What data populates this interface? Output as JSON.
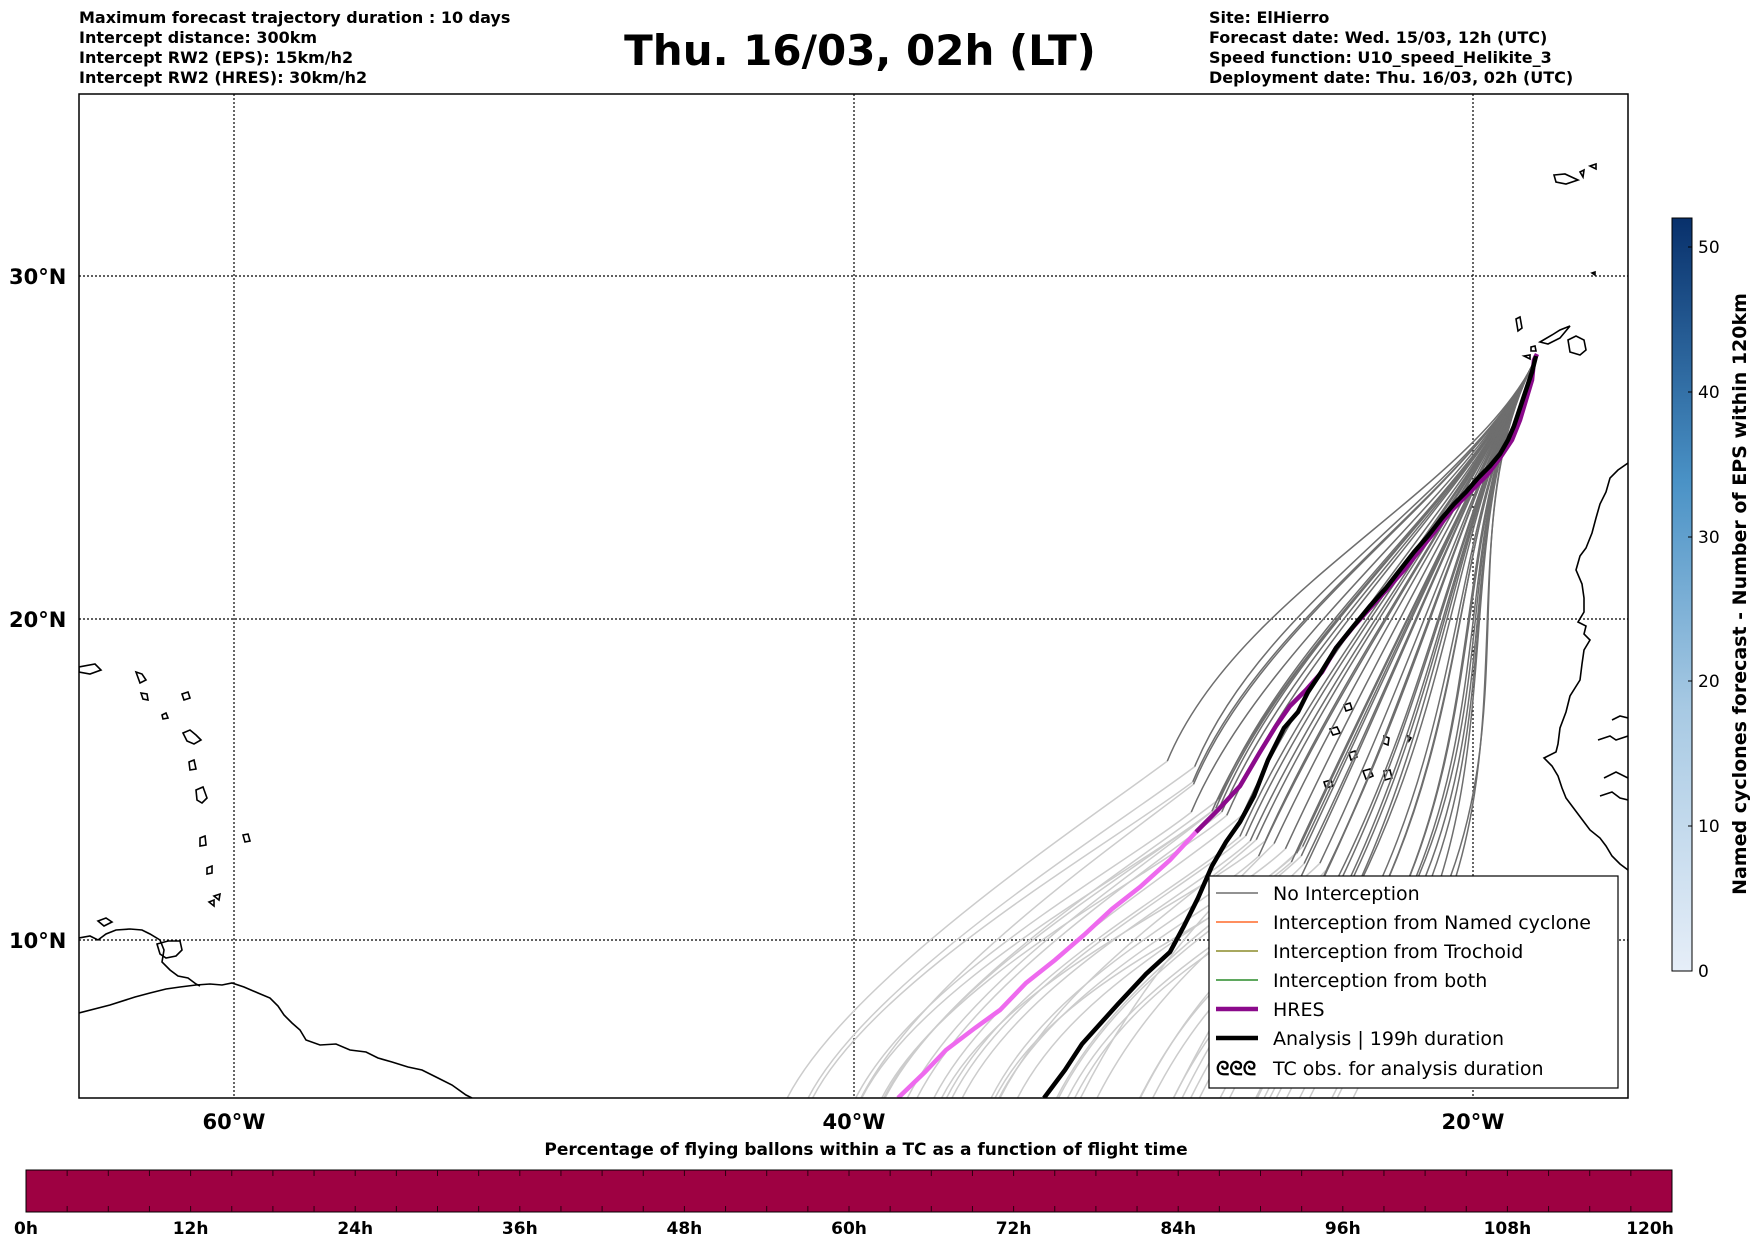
{
  "header": {
    "left_lines": [
      "Maximum forecast trajectory duration : 10 days",
      "Intercept distance: 300km",
      "Intercept RW2 (EPS):  15km/h2",
      "Intercept RW2 (HRES): 30km/h2"
    ],
    "title": "Thu. 16/03, 02h (LT)",
    "right_lines": [
      "Site: ElHierro",
      "Forecast date: Wed. 15/03, 12h (UTC)",
      "Speed function: U10_speed_Helikite_3",
      "Deployment date: Thu. 16/03, 02h (UTC)"
    ]
  },
  "map": {
    "lat_labels": [
      "30°N",
      "20°N",
      "10°N"
    ],
    "lon_labels": [
      "60°W",
      "40°W",
      "20°W"
    ],
    "gridline_style": "dotted",
    "site": "ElHierro",
    "colors": {
      "no_interception": "#6e6e6e",
      "no_interception_late": "#cccccc",
      "hres": "#8b0a8b",
      "hres_late": "#ee6aee",
      "analysis": "#000000",
      "named_cyclone": "#ff6a2a",
      "trochoid": "#8b8b2a",
      "both": "#2a8b2a"
    }
  },
  "legend": {
    "items": [
      {
        "label": "No Interception",
        "style": "thin-gray"
      },
      {
        "label": "Interception from Named cyclone",
        "style": "thin-orange"
      },
      {
        "label": "Interception from Trochoid",
        "style": "thin-olive"
      },
      {
        "label": "Interception from both",
        "style": "thin-green"
      },
      {
        "label": "HRES",
        "style": "thick-purple"
      },
      {
        "label": "Analysis | 199h duration",
        "style": "thick-black"
      },
      {
        "label": "TC obs. for analysis duration",
        "style": "cyclone-symbols"
      }
    ],
    "cyclone_symbol": "ᘓᘓᘓ"
  },
  "side_colorbar": {
    "label": "Named cyclones forecast - Number of EPS within 120km",
    "ticks": [
      "0",
      "10",
      "20",
      "30",
      "40",
      "50"
    ],
    "range": [
      0,
      52
    ],
    "color_low": "#e6eef8",
    "color_high": "#08306b"
  },
  "bottom_colorbar": {
    "title": "Percentage of flying ballons within a TC as a function of flight time",
    "ticks": [
      "0h",
      "12h",
      "24h",
      "36h",
      "48h",
      "60h",
      "72h",
      "84h",
      "96h",
      "108h",
      "120h"
    ],
    "color": "#9e0142"
  }
}
